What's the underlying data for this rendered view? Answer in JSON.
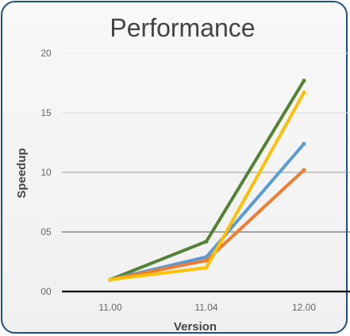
{
  "chart_data": {
    "type": "line",
    "title": "Performance",
    "xlabel": "Version",
    "ylabel": "Speedup",
    "categories": [
      "11.00",
      "11.04",
      "12.00"
    ],
    "ylim": [
      0,
      20
    ],
    "y_ticks": [
      "00",
      "05",
      "10",
      "15",
      "20"
    ],
    "y_tick_values": [
      0,
      5,
      10,
      15,
      20
    ],
    "grid": true,
    "legend": "none",
    "series": [
      {
        "color": "#548235",
        "values": [
          1.0,
          4.2,
          17.7
        ]
      },
      {
        "color": "#5b9bd5",
        "values": [
          1.0,
          2.9,
          12.4
        ]
      },
      {
        "color": "#ed7d31",
        "values": [
          1.0,
          2.6,
          10.2
        ]
      },
      {
        "color": "#ffc000",
        "values": [
          1.0,
          2.0,
          16.7
        ]
      }
    ]
  }
}
